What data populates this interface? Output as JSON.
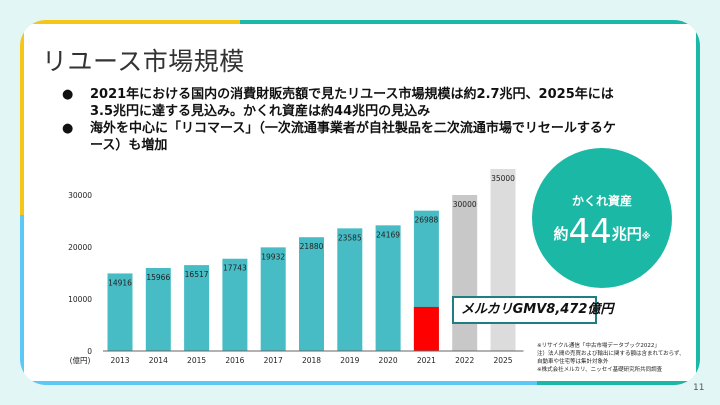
{
  "slide": {
    "title": "リユース市場規模",
    "page_number": "11",
    "bullets": [
      {
        "dot": "●",
        "lines": [
          "2021年における国内の消費財販売額で見たリユース市場規模は約2.7兆円、2025年には",
          "3.5兆円に達する見込み。かくれ資産は約44兆円の見込み"
        ]
      },
      {
        "dot": "●",
        "lines": [
          "海外を中心に「リコマース」（一次流通事業者が自社製品を二次流通市場でリセールするケ",
          "ース）も増加"
        ]
      }
    ],
    "circle": {
      "label": "かくれ資産",
      "prefix": "約",
      "value": "44",
      "unit": "兆円",
      "note": "※"
    },
    "callout": "メルカリGMV8,472億円",
    "notes": [
      "※リサイクル通信「中古市場データブック2022」",
      "注）法人間の売買および輸出に関する額は含まれておらず、",
      "自動車や住宅等は集計対象外",
      "※株式会社メルカリ、ニッセイ基礎研究所共同調査"
    ],
    "colors": {
      "teal": "#1bb8a5",
      "bar_teal": "#47bcc4",
      "red": "#ff0000",
      "gray_2022": "#c8c8c8",
      "gray_2025": "#dcdcdc",
      "yellow": "#f5c518",
      "blue": "#5bc8f5",
      "bg": "#e2f6f6"
    }
  },
  "chart_data": {
    "type": "bar",
    "title": "",
    "xlabel": "",
    "ylabel": "(億円)",
    "ylim": [
      0,
      30000
    ],
    "yticks": [
      0,
      10000,
      20000,
      30000
    ],
    "ytick_labels": [
      "0",
      "10000",
      "20000",
      "30000"
    ],
    "unit_label": "(億円)",
    "categories": [
      "2013",
      "2014",
      "2015",
      "2016",
      "2017",
      "2018",
      "2019",
      "2020",
      "2021",
      "2022",
      "2025"
    ],
    "values": [
      14916,
      15966,
      16517,
      17743,
      19932,
      21880,
      23585,
      24169,
      26988,
      30000,
      35000
    ],
    "value_labels": [
      "14916",
      "15966",
      "16517",
      "17743",
      "19932",
      "21880",
      "23585",
      "24169",
      "26988",
      "30000",
      "35000"
    ],
    "bar_kinds": [
      "actual",
      "actual",
      "actual",
      "actual",
      "actual",
      "actual",
      "actual",
      "actual",
      "actual",
      "forecast",
      "forecast"
    ],
    "highlight": {
      "category": "2021",
      "name": "メルカリGMV",
      "value": 8472
    },
    "grid": false,
    "legend": "none"
  }
}
